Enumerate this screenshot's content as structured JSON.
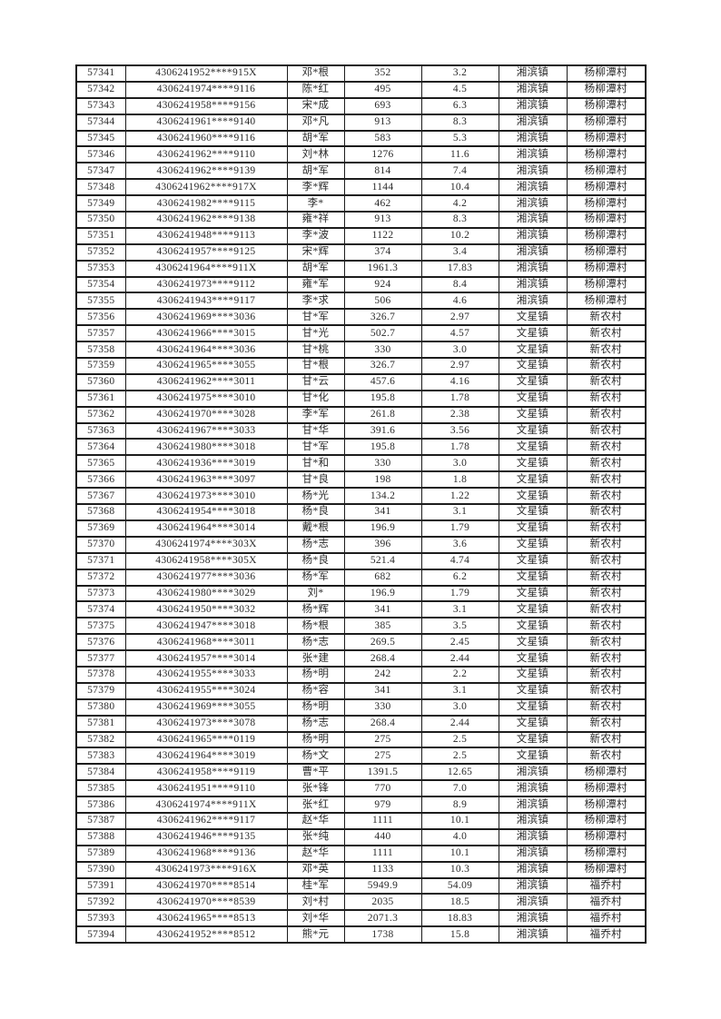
{
  "colors": {
    "page_background": "#ffffff",
    "border": "#1c1c1c",
    "text": "#2a2a2a"
  },
  "table": {
    "rows": [
      [
        "57341",
        "4306241952****915X",
        "邓*根",
        "352",
        "3.2",
        "湘滨镇",
        "杨柳潭村"
      ],
      [
        "57342",
        "4306241974****9116",
        "陈*红",
        "495",
        "4.5",
        "湘滨镇",
        "杨柳潭村"
      ],
      [
        "57343",
        "4306241958****9156",
        "宋*成",
        "693",
        "6.3",
        "湘滨镇",
        "杨柳潭村"
      ],
      [
        "57344",
        "4306241961****9140",
        "邓*凡",
        "913",
        "8.3",
        "湘滨镇",
        "杨柳潭村"
      ],
      [
        "57345",
        "4306241960****9116",
        "胡*军",
        "583",
        "5.3",
        "湘滨镇",
        "杨柳潭村"
      ],
      [
        "57346",
        "4306241962****9110",
        "刘*林",
        "1276",
        "11.6",
        "湘滨镇",
        "杨柳潭村"
      ],
      [
        "57347",
        "4306241962****9139",
        "胡*军",
        "814",
        "7.4",
        "湘滨镇",
        "杨柳潭村"
      ],
      [
        "57348",
        "4306241962****917X",
        "李*辉",
        "1144",
        "10.4",
        "湘滨镇",
        "杨柳潭村"
      ],
      [
        "57349",
        "4306241982****9115",
        "李*",
        "462",
        "4.2",
        "湘滨镇",
        "杨柳潭村"
      ],
      [
        "57350",
        "4306241962****9138",
        "雍*祥",
        "913",
        "8.3",
        "湘滨镇",
        "杨柳潭村"
      ],
      [
        "57351",
        "4306241948****9113",
        "李*波",
        "1122",
        "10.2",
        "湘滨镇",
        "杨柳潭村"
      ],
      [
        "57352",
        "4306241957****9125",
        "宋*辉",
        "374",
        "3.4",
        "湘滨镇",
        "杨柳潭村"
      ],
      [
        "57353",
        "4306241964****911X",
        "胡*军",
        "1961.3",
        "17.83",
        "湘滨镇",
        "杨柳潭村"
      ],
      [
        "57354",
        "4306241973****9112",
        "雍*军",
        "924",
        "8.4",
        "湘滨镇",
        "杨柳潭村"
      ],
      [
        "57355",
        "4306241943****9117",
        "李*求",
        "506",
        "4.6",
        "湘滨镇",
        "杨柳潭村"
      ],
      [
        "57356",
        "4306241969****3036",
        "甘*军",
        "326.7",
        "2.97",
        "文星镇",
        "新农村"
      ],
      [
        "57357",
        "4306241966****3015",
        "甘*光",
        "502.7",
        "4.57",
        "文星镇",
        "新农村"
      ],
      [
        "57358",
        "4306241964****3036",
        "甘*桃",
        "330",
        "3.0",
        "文星镇",
        "新农村"
      ],
      [
        "57359",
        "4306241965****3055",
        "甘*根",
        "326.7",
        "2.97",
        "文星镇",
        "新农村"
      ],
      [
        "57360",
        "4306241962****3011",
        "甘*云",
        "457.6",
        "4.16",
        "文星镇",
        "新农村"
      ],
      [
        "57361",
        "4306241975****3010",
        "甘*化",
        "195.8",
        "1.78",
        "文星镇",
        "新农村"
      ],
      [
        "57362",
        "4306241970****3028",
        "李*军",
        "261.8",
        "2.38",
        "文星镇",
        "新农村"
      ],
      [
        "57363",
        "4306241967****3033",
        "甘*华",
        "391.6",
        "3.56",
        "文星镇",
        "新农村"
      ],
      [
        "57364",
        "4306241980****3018",
        "甘*军",
        "195.8",
        "1.78",
        "文星镇",
        "新农村"
      ],
      [
        "57365",
        "4306241936****3019",
        "甘*和",
        "330",
        "3.0",
        "文星镇",
        "新农村"
      ],
      [
        "57366",
        "4306241963****3097",
        "甘*良",
        "198",
        "1.8",
        "文星镇",
        "新农村"
      ],
      [
        "57367",
        "4306241973****3010",
        "杨*光",
        "134.2",
        "1.22",
        "文星镇",
        "新农村"
      ],
      [
        "57368",
        "4306241954****3018",
        "杨*良",
        "341",
        "3.1",
        "文星镇",
        "新农村"
      ],
      [
        "57369",
        "4306241964****3014",
        "戴*根",
        "196.9",
        "1.79",
        "文星镇",
        "新农村"
      ],
      [
        "57370",
        "4306241974****303X",
        "杨*志",
        "396",
        "3.6",
        "文星镇",
        "新农村"
      ],
      [
        "57371",
        "4306241958****305X",
        "杨*良",
        "521.4",
        "4.74",
        "文星镇",
        "新农村"
      ],
      [
        "57372",
        "4306241977****3036",
        "杨*军",
        "682",
        "6.2",
        "文星镇",
        "新农村"
      ],
      [
        "57373",
        "4306241980****3029",
        "刘*",
        "196.9",
        "1.79",
        "文星镇",
        "新农村"
      ],
      [
        "57374",
        "4306241950****3032",
        "杨*辉",
        "341",
        "3.1",
        "文星镇",
        "新农村"
      ],
      [
        "57375",
        "4306241947****3018",
        "杨*根",
        "385",
        "3.5",
        "文星镇",
        "新农村"
      ],
      [
        "57376",
        "4306241968****3011",
        "杨*志",
        "269.5",
        "2.45",
        "文星镇",
        "新农村"
      ],
      [
        "57377",
        "4306241957****3014",
        "张*建",
        "268.4",
        "2.44",
        "文星镇",
        "新农村"
      ],
      [
        "57378",
        "4306241955****3033",
        "杨*明",
        "242",
        "2.2",
        "文星镇",
        "新农村"
      ],
      [
        "57379",
        "4306241955****3024",
        "杨*容",
        "341",
        "3.1",
        "文星镇",
        "新农村"
      ],
      [
        "57380",
        "4306241969****3055",
        "杨*明",
        "330",
        "3.0",
        "文星镇",
        "新农村"
      ],
      [
        "57381",
        "4306241973****3078",
        "杨*志",
        "268.4",
        "2.44",
        "文星镇",
        "新农村"
      ],
      [
        "57382",
        "4306241965****0119",
        "杨*明",
        "275",
        "2.5",
        "文星镇",
        "新农村"
      ],
      [
        "57383",
        "4306241964****3019",
        "杨*文",
        "275",
        "2.5",
        "文星镇",
        "新农村"
      ],
      [
        "57384",
        "4306241958****9119",
        "曹*平",
        "1391.5",
        "12.65",
        "湘滨镇",
        "杨柳潭村"
      ],
      [
        "57385",
        "4306241951****9110",
        "张*锋",
        "770",
        "7.0",
        "湘滨镇",
        "杨柳潭村"
      ],
      [
        "57386",
        "4306241974****911X",
        "张*红",
        "979",
        "8.9",
        "湘滨镇",
        "杨柳潭村"
      ],
      [
        "57387",
        "4306241962****9117",
        "赵*华",
        "1111",
        "10.1",
        "湘滨镇",
        "杨柳潭村"
      ],
      [
        "57388",
        "4306241946****9135",
        "张*纯",
        "440",
        "4.0",
        "湘滨镇",
        "杨柳潭村"
      ],
      [
        "57389",
        "4306241968****9136",
        "赵*华",
        "1111",
        "10.1",
        "湘滨镇",
        "杨柳潭村"
      ],
      [
        "57390",
        "4306241973****916X",
        "邓*英",
        "1133",
        "10.3",
        "湘滨镇",
        "杨柳潭村"
      ],
      [
        "57391",
        "4306241970****8514",
        "桂*军",
        "5949.9",
        "54.09",
        "湘滨镇",
        "福乔村"
      ],
      [
        "57392",
        "4306241970****8539",
        "刘*村",
        "2035",
        "18.5",
        "湘滨镇",
        "福乔村"
      ],
      [
        "57393",
        "4306241965****8513",
        "刘*华",
        "2071.3",
        "18.83",
        "湘滨镇",
        "福乔村"
      ],
      [
        "57394",
        "4306241952****8512",
        "熊*元",
        "1738",
        "15.8",
        "湘滨镇",
        "福乔村"
      ]
    ]
  }
}
